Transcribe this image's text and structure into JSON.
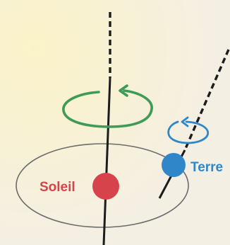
{
  "labels": {
    "sun": "Soleil",
    "earth": "Terre"
  },
  "colors": {
    "background": "#f7f2e4",
    "axis": "#1c1c1c",
    "orbit": "#6b6b6b",
    "sun": "#d6434b",
    "earth": "#2f86c9",
    "sun_rotation_arrow": "#3f9a57",
    "earth_rotation_arrow": "#2f86c9"
  },
  "icons": {
    "sun": "circle",
    "earth": "circle",
    "sun_rotation": "circular-arrow",
    "earth_rotation": "circular-arrow"
  }
}
